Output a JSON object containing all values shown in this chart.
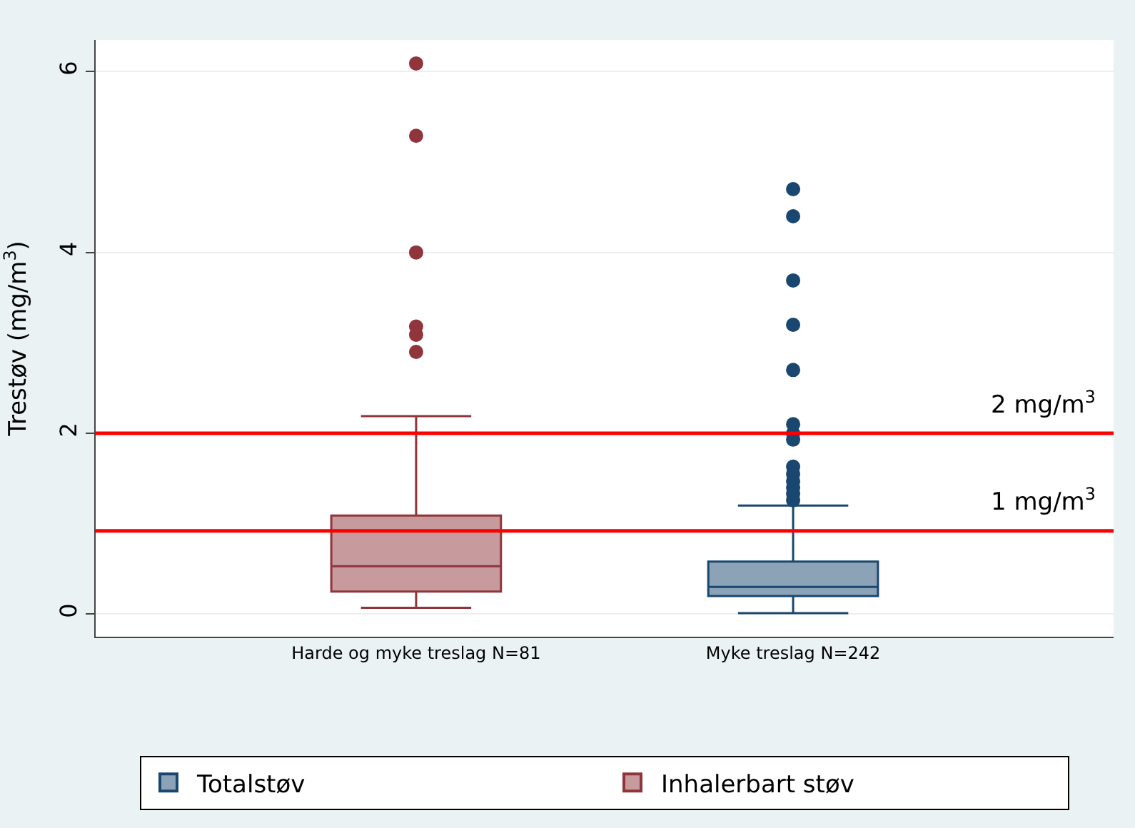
{
  "chart_data": {
    "type": "box",
    "ylabel": "Trestøv (mg/m$^{3}$)",
    "categories": [
      "Harde og myke treslag N=81",
      "Myke treslag N=242"
    ],
    "ylim": [
      -0.25,
      6.35
    ],
    "yticks": [
      0,
      2,
      4,
      6
    ],
    "grid": "y",
    "legend": "bottom",
    "series": [
      {
        "name": "Totalstøv",
        "color": "#1a476f",
        "boxes": [
          null,
          {
            "low": 0.01,
            "q1": 0.2,
            "median": 0.3,
            "q3": 0.58,
            "high": 1.2,
            "outliers": [
              4.7,
              4.4,
              3.69,
              3.2,
              2.7,
              2.1,
              2.0,
              1.93,
              1.63,
              1.55,
              1.47,
              1.4,
              1.33,
              1.26
            ]
          }
        ]
      },
      {
        "name": "Inhalerbart støv",
        "color": "#90353b",
        "boxes": [
          {
            "low": 0.07,
            "q1": 0.25,
            "median": 0.53,
            "q3": 1.09,
            "high": 2.19,
            "outliers": [
              2.9,
              3.09,
              3.18,
              4.0,
              5.29,
              6.09
            ]
          },
          null
        ]
      }
    ],
    "ref_lines": [
      {
        "axis": "y",
        "value": 2,
        "label": "2 mg/m$^{3}$",
        "color": "#ff0000"
      },
      {
        "axis": "y",
        "value": 0.92,
        "label": "1 mg/m$^{3}$",
        "color": "#ff0000"
      }
    ]
  }
}
